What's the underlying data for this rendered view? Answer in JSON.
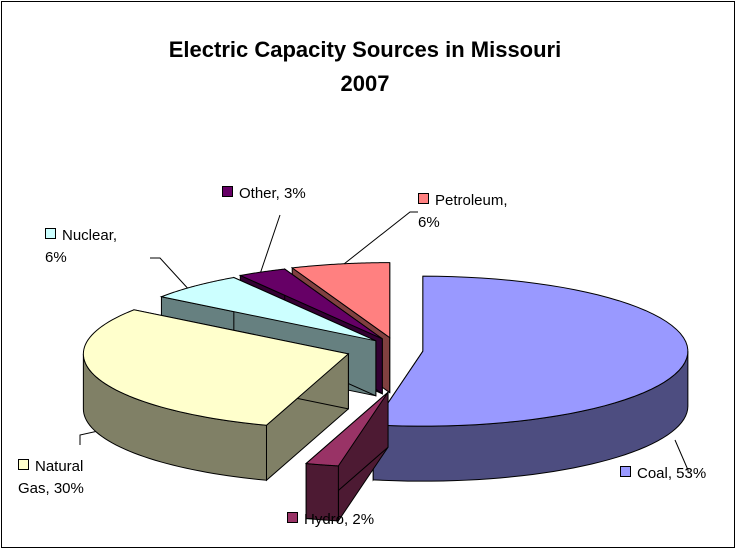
{
  "chart_data": {
    "type": "pie3d",
    "title": "Electric Capacity Sources in Missouri 2007",
    "values": [
      53,
      2,
      30,
      6,
      3,
      6
    ],
    "value_labels": [
      "Coal, 53%",
      "Hydro, 2%",
      "Natural Gas, 30%",
      "Nuclear, 6%",
      "Other, 3%",
      "Petroleum, 6%"
    ],
    "colors": [
      "#9999ff",
      "#993366",
      "#ffffcc",
      "#ccffff",
      "#660066",
      "#ff8080"
    ]
  }
}
